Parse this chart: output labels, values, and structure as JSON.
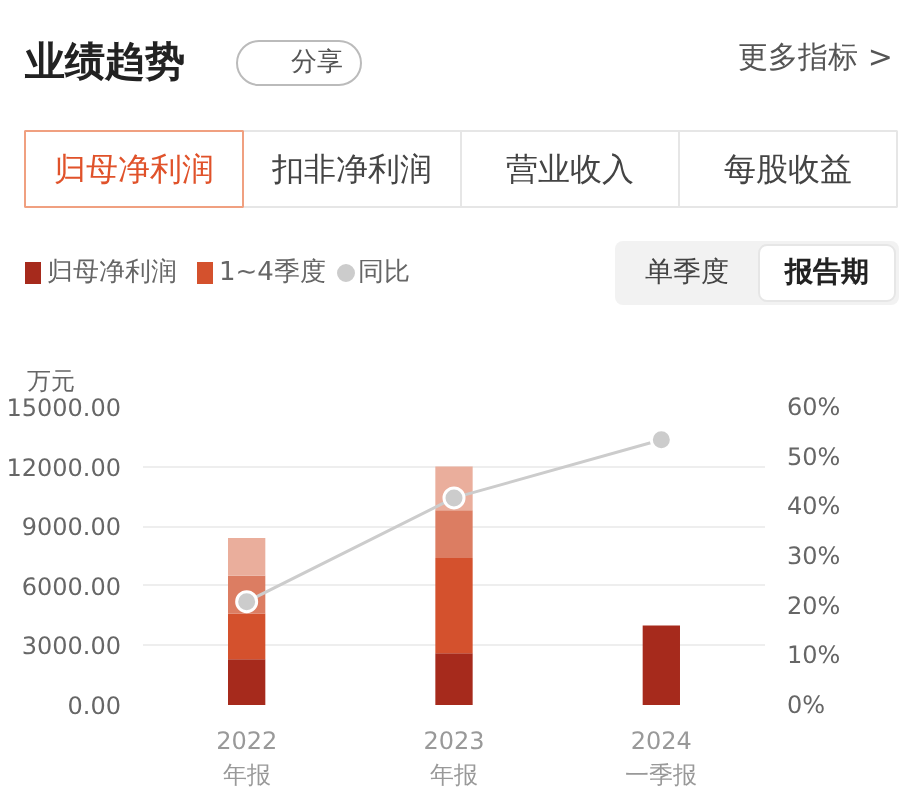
{
  "chart_data": {
    "type": "bar",
    "title": "业绩趋势",
    "stacked": true,
    "annotations": [
      "分享",
      "更多指标 >",
      "归母净利润",
      "扣非净利润",
      "营业收入",
      "每股收益",
      "单季度",
      "报告期"
    ],
    "ylabel": "万元",
    "categories": [
      "2022\n年报",
      "2023\n年报",
      "2024\n一季报"
    ],
    "series": [
      {
        "name": "归母净利润",
        "color": "#a62a1c",
        "values": [
          2300,
          2600,
          4000
        ]
      },
      {
        "name": "1~4季度",
        "color": "#d4512d",
        "values": [
          2300,
          4800,
          null
        ]
      },
      {
        "color": "#dc7d62",
        "values": [
          1900,
          2400,
          null
        ]
      },
      {
        "color": "#eaae9c",
        "values": [
          1900,
          2200,
          null
        ]
      },
      {
        "name": "同比",
        "type": "line",
        "axis": "y2",
        "color": "#cccccc",
        "marker": "circle",
        "values": [
          20.8,
          41.7,
          53.4
        ]
      }
    ],
    "ylim": [
      0,
      15000
    ],
    "yticks": [
      {
        "value": 0,
        "label": "0.00"
      },
      {
        "value": 3000,
        "label": "3000.00"
      },
      {
        "value": 6000,
        "label": "6000.00"
      },
      {
        "value": 9000,
        "label": "9000.00"
      },
      {
        "value": 12000,
        "label": "12000.00"
      },
      {
        "value": 15000,
        "label": "15000.00"
      }
    ],
    "y2lim": [
      0,
      60
    ],
    "y2ticks": [
      {
        "value": 0,
        "label": "0%"
      },
      {
        "value": 10,
        "label": "10%"
      },
      {
        "value": 20,
        "label": "20%"
      },
      {
        "value": 30,
        "label": "30%"
      },
      {
        "value": 40,
        "label": "40%"
      },
      {
        "value": 50,
        "label": "50%"
      },
      {
        "value": 60,
        "label": "60%"
      }
    ],
    "grid": "y",
    "legend": "top left"
  }
}
